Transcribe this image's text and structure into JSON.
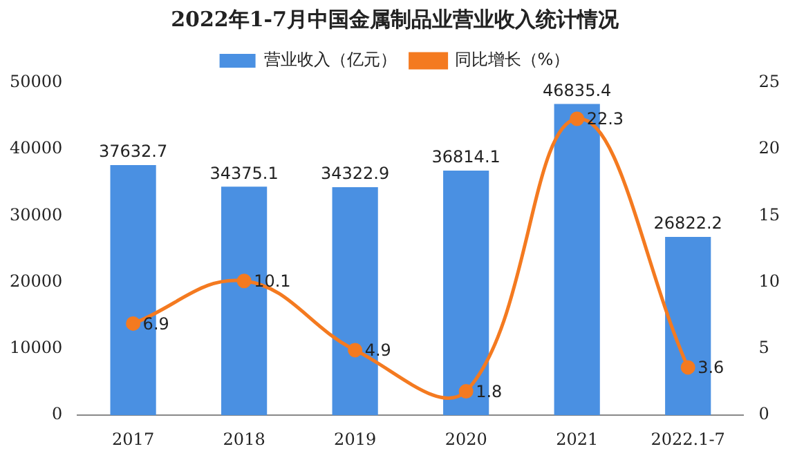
{
  "chart_data": {
    "type": "bar",
    "title": "2022年1-7月中国金属制品业营业收入统计情况",
    "categories": [
      "2017",
      "2018",
      "2019",
      "2020",
      "2021",
      "2022.1-7"
    ],
    "series": [
      {
        "name": "营业收入（亿元）",
        "color": "#4a90e2",
        "values": [
          37632.7,
          34375.1,
          34322.9,
          36814.1,
          46835.4,
          26822.2
        ]
      },
      {
        "name": "同比增长（%）",
        "type": "line",
        "axis": "y2",
        "color": "#f47a20",
        "values": [
          6.9,
          10.1,
          4.9,
          1.8,
          22.3,
          3.6
        ]
      }
    ],
    "ylim": [
      0,
      50000
    ],
    "yticks": [
      0,
      10000,
      20000,
      30000,
      40000,
      50000
    ],
    "y2lim": [
      0,
      25
    ],
    "y2ticks": [
      0,
      5,
      10,
      15,
      20,
      25
    ],
    "data_labels": true,
    "legend": "top",
    "grid": false,
    "marker": "circle"
  }
}
